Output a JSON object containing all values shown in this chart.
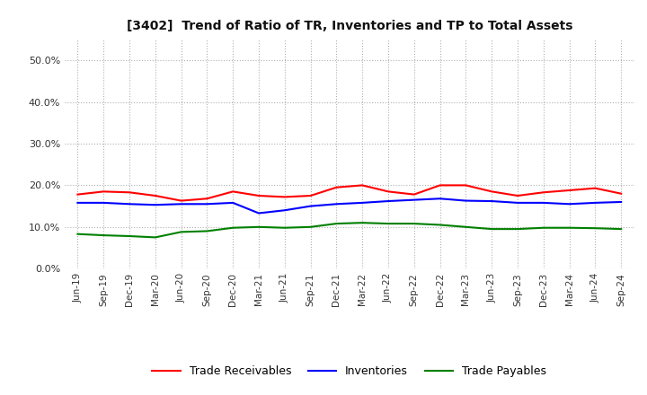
{
  "title": "[3402]  Trend of Ratio of TR, Inventories and TP to Total Assets",
  "x_labels": [
    "Jun-19",
    "Sep-19",
    "Dec-19",
    "Mar-20",
    "Jun-20",
    "Sep-20",
    "Dec-20",
    "Mar-21",
    "Jun-21",
    "Sep-21",
    "Dec-21",
    "Mar-22",
    "Jun-22",
    "Sep-22",
    "Dec-22",
    "Mar-23",
    "Jun-23",
    "Sep-23",
    "Dec-23",
    "Mar-24",
    "Jun-24",
    "Sep-24"
  ],
  "trade_receivables": [
    0.178,
    0.185,
    0.183,
    0.175,
    0.163,
    0.168,
    0.185,
    0.175,
    0.172,
    0.175,
    0.195,
    0.2,
    0.185,
    0.178,
    0.2,
    0.2,
    0.185,
    0.175,
    0.183,
    0.188,
    0.193,
    0.18
  ],
  "inventories": [
    0.158,
    0.158,
    0.155,
    0.153,
    0.155,
    0.155,
    0.158,
    0.133,
    0.14,
    0.15,
    0.155,
    0.158,
    0.162,
    0.165,
    0.168,
    0.163,
    0.162,
    0.158,
    0.158,
    0.155,
    0.158,
    0.16
  ],
  "trade_payables": [
    0.083,
    0.08,
    0.078,
    0.075,
    0.088,
    0.09,
    0.098,
    0.1,
    0.098,
    0.1,
    0.108,
    0.11,
    0.108,
    0.108,
    0.105,
    0.1,
    0.095,
    0.095,
    0.098,
    0.098,
    0.097,
    0.095
  ],
  "tr_color": "#ff0000",
  "inv_color": "#0000ff",
  "tp_color": "#008000",
  "ylim": [
    0.0,
    0.55
  ],
  "yticks": [
    0.0,
    0.1,
    0.2,
    0.3,
    0.4,
    0.5
  ],
  "bg_color": "#ffffff",
  "grid_color": "#b0b0b0",
  "legend_labels": [
    "Trade Receivables",
    "Inventories",
    "Trade Payables"
  ]
}
